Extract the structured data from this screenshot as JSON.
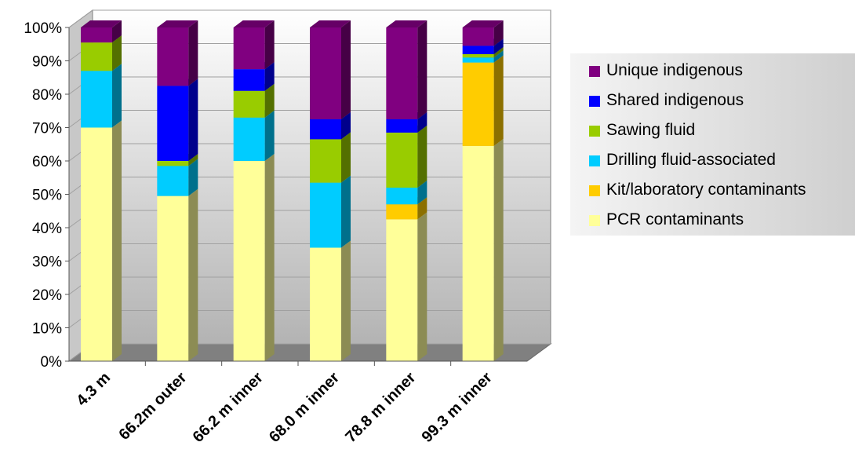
{
  "chart_data": {
    "type": "bar",
    "stacked": true,
    "three_d": true,
    "categories": [
      "4.3 m",
      "66.2m outer",
      "66.2 m inner",
      "68.0 m inner",
      "78.8 m inner",
      "99.3 m inner"
    ],
    "ylim": [
      0,
      100
    ],
    "y_ticks": [
      "0%",
      "10%",
      "20%",
      "30%",
      "40%",
      "50%",
      "60%",
      "70%",
      "80%",
      "90%",
      "100%"
    ],
    "grid": true,
    "legend_position": "right",
    "series": [
      {
        "name": "PCR contaminants",
        "color": "#ffff99",
        "values": [
          70,
          49.5,
          60,
          34,
          42.5,
          64.5
        ]
      },
      {
        "name": "Kit/laboratory contaminants",
        "color": "#ffcc00",
        "values": [
          0,
          0,
          0,
          0,
          4.5,
          25
        ]
      },
      {
        "name": "Drilling fluid-associated",
        "color": "#00ccff",
        "values": [
          17,
          9,
          13,
          19.5,
          5,
          1.5
        ]
      },
      {
        "name": "Sawing fluid",
        "color": "#99cc00",
        "values": [
          8.5,
          1.5,
          8,
          13,
          16.5,
          1
        ]
      },
      {
        "name": "Shared indigenous",
        "color": "#0000ff",
        "values": [
          0,
          22.5,
          6.5,
          6,
          4,
          2.5
        ]
      },
      {
        "name": "Unique indigenous",
        "color": "#800080",
        "values": [
          4.5,
          17.5,
          12.5,
          27.5,
          27.5,
          5.5
        ]
      }
    ]
  }
}
